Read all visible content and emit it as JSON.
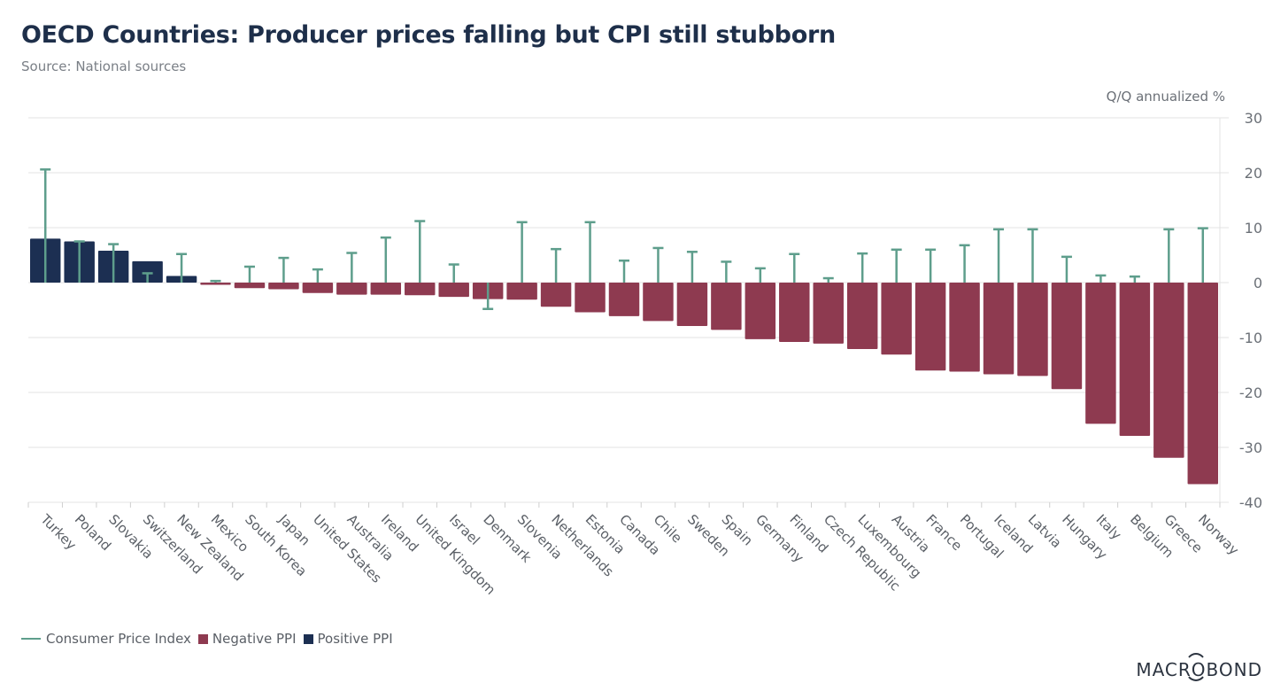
{
  "header": {
    "title": "OECD Countries: Producer prices falling but CPI still stubborn",
    "subtitle": "Source: National sources"
  },
  "colors": {
    "positive_ppi": "#1c2f52",
    "negative_ppi": "#8e3a50",
    "cpi": "#5e9e8c",
    "grid": "#e3e3e3",
    "axis_text": "#6b7077"
  },
  "legend": {
    "items": [
      {
        "label": "Consumer Price Index",
        "type": "line",
        "color_key": "cpi"
      },
      {
        "label": "Negative PPI",
        "type": "box",
        "color_key": "negative_ppi"
      },
      {
        "label": "Positive PPI",
        "type": "box",
        "color_key": "positive_ppi"
      }
    ]
  },
  "brand": {
    "name": "MACROBOND"
  },
  "chart_data": {
    "type": "bar",
    "title": "OECD Countries: Producer prices falling but CPI still stubborn",
    "subtitle": "Source: National sources",
    "xlabel": "",
    "ylabel": "Q/Q annualized %",
    "ylim": [
      -40,
      30
    ],
    "yticks": [
      30,
      20,
      10,
      0,
      -10,
      -20,
      -30,
      -40
    ],
    "y_axis_side": "right",
    "grid": true,
    "legend_position": "bottom-left",
    "categories": [
      "Turkey",
      "Poland",
      "Slovakia",
      "Switzerland",
      "New Zealand",
      "Mexico",
      "South Korea",
      "Japan",
      "United States",
      "Australia",
      "Ireland",
      "United Kingdom",
      "Israel",
      "Denmark",
      "Slovenia",
      "Netherlands",
      "Estonia",
      "Canada",
      "Chile",
      "Sweden",
      "Spain",
      "Germany",
      "Finland",
      "Czech Republic",
      "Luxembourg",
      "Austria",
      "France",
      "Portugal",
      "Iceland",
      "Latvia",
      "Hungary",
      "Italy",
      "Belgium",
      "Greece",
      "Norway"
    ],
    "series": [
      {
        "name": "PPI",
        "kind": "bar",
        "note": "colored Positive PPI if >= 0, Negative PPI if < 0",
        "values": [
          8.0,
          7.5,
          5.8,
          3.9,
          1.2,
          -0.4,
          -1.0,
          -1.2,
          -1.9,
          -2.2,
          -2.2,
          -2.3,
          -2.6,
          -3.0,
          -3.1,
          -4.4,
          -5.4,
          -6.1,
          -7.0,
          -7.9,
          -8.6,
          -10.3,
          -10.8,
          -11.1,
          -12.1,
          -13.1,
          -16.0,
          -16.2,
          -16.7,
          -17.0,
          -19.4,
          -25.7,
          -27.9,
          -31.9,
          -36.7
        ]
      },
      {
        "name": "Consumer Price Index",
        "kind": "stem",
        "values": [
          20.6,
          7.5,
          7.0,
          1.7,
          5.2,
          0.3,
          2.9,
          4.5,
          2.4,
          5.4,
          8.2,
          11.2,
          3.3,
          -4.8,
          11.0,
          6.1,
          11.0,
          4.0,
          6.3,
          5.6,
          3.8,
          2.6,
          5.2,
          0.8,
          5.3,
          6.0,
          6.0,
          6.8,
          9.7,
          9.7,
          4.7,
          1.3,
          1.1,
          9.7,
          9.9
        ]
      }
    ]
  }
}
